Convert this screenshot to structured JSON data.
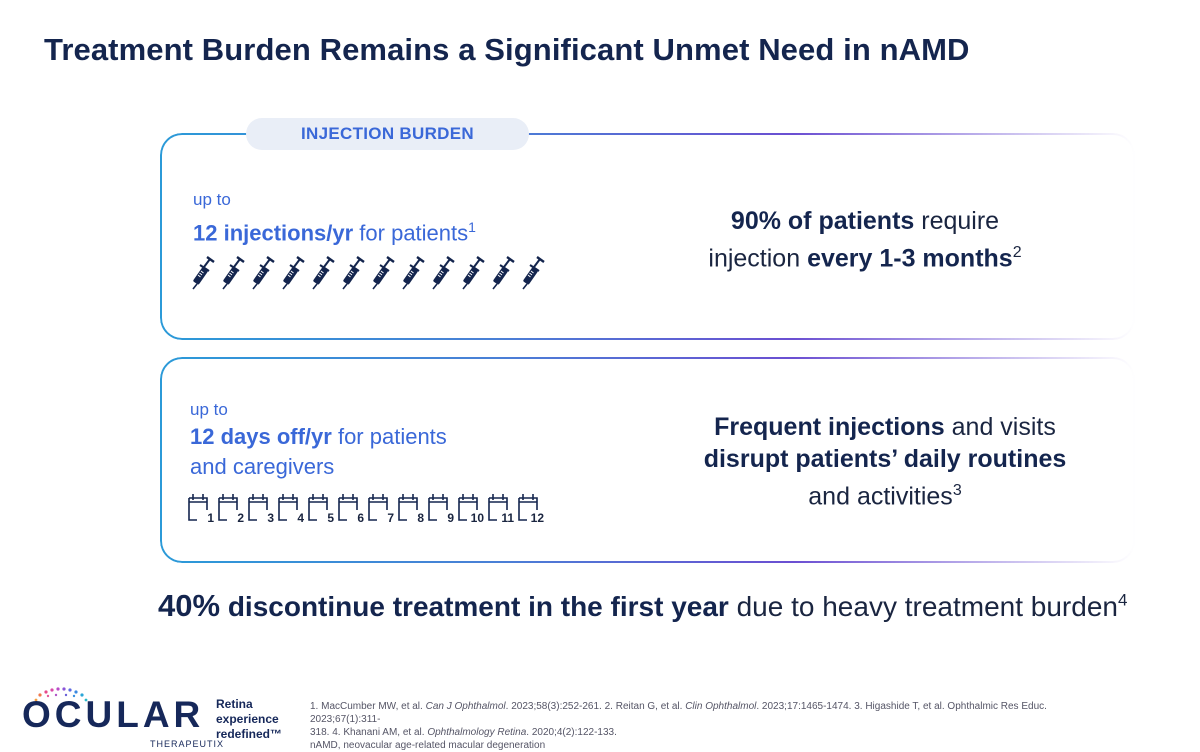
{
  "title": "Treatment Burden Remains a Significant Unmet Need in nAMD",
  "pill": "INJECTION BURDEN",
  "card1": {
    "upto": "up to",
    "highlight": "12 injections/yr",
    "rest": " for patients",
    "sup": "1",
    "right_bold1": "90% of patients",
    "right_text1": " require",
    "right_text2": "injection ",
    "right_bold2": "every 1-3 months",
    "right_sup": "2",
    "syringe_count": 12
  },
  "card2": {
    "upto": "up to",
    "highlight": "12 days off/yr",
    "rest1": " for patients",
    "rest2": "and caregivers",
    "right_bold1": "Frequent injections",
    "right_text1": " and visits",
    "right_bold2": "disrupt patients’ daily routines",
    "right_text3": "and activities",
    "right_sup": "3",
    "calendar_days": [
      "1",
      "2",
      "3",
      "4",
      "5",
      "6",
      "7",
      "8",
      "9",
      "10",
      "11",
      "12"
    ]
  },
  "bottom": {
    "bold1": "40%",
    "bold2": " discontinue treatment in the first year",
    "rest": " due to heavy treatment burden",
    "sup": "4"
  },
  "logo": {
    "word": "OCULAR",
    "sub": "THERAPEUTIX",
    "tagline1": "Retina",
    "tagline2": "experience",
    "tagline3": "redefined™"
  },
  "refs": {
    "line1_a": "1. MacCumber MW, et al. ",
    "line1_b": "Can J Ophthalmol",
    "line1_c": ". 2023;58(3):252-261. 2. Reitan G, et al. ",
    "line1_d": "Clin Ophthalmol",
    "line1_e": ". 2023;17:1465-1474. 3. Higashide T, et al. Ophthalmic Res Educ. 2023;67(1):311-",
    "line2_a": "318. 4. Khanani AM, et al. ",
    "line2_b": "Ophthalmology Retina",
    "line2_c": ". 2020;4(2):122-133.",
    "line3": "nAMD, neovacular age-related macular degeneration"
  }
}
